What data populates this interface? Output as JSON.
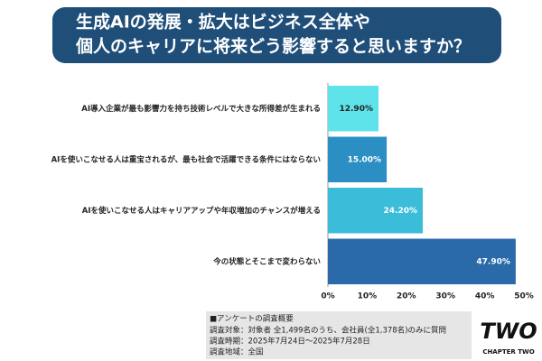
{
  "chart_data": {
    "type": "hbar",
    "title_lines": [
      "生成AIの発展・拡大はビジネス全体や",
      "個人のキャリアに将来どう影響すると思いますか？"
    ],
    "categories": [
      "AI導入企業が最も影響力を持ち技術レベルで大きな所得差が生まれる",
      "AIを使いこなせる人は重宝されるが、最も社会で活躍できる条件にはならない",
      "AIを使いこなせる人はキャリアアップや年収増加のチャンスが増える",
      "今の状態とそこまで変わらない"
    ],
    "values": [
      12.9,
      15,
      24.2,
      47.9
    ],
    "value_labels": [
      "12.90%",
      "15.00%",
      "24.20%",
      "47.90%"
    ],
    "colors": [
      "#5fe3ea",
      "#2b8fc3",
      "#3bbcd9",
      "#2a6aa8"
    ],
    "xlim": [
      0,
      50
    ],
    "xticks": [
      {
        "value": 0,
        "label": "0%"
      },
      {
        "value": 10,
        "label": "10%"
      },
      {
        "value": 20,
        "label": "20%"
      },
      {
        "value": 30,
        "label": "30%"
      },
      {
        "value": 40,
        "label": "40%"
      },
      {
        "value": 50,
        "label": "50%"
      }
    ]
  },
  "survey": {
    "lines": [
      "■アンケートの調査概要",
      "調査対象：対象者 全1,499名のうち、会社員(全1,378名)のみに質問",
      "調査時期：2025年7月24日～2025年7月28日",
      "調査地域：全国"
    ]
  },
  "logo": {
    "text": "TWO",
    "subtext": "CHAPTER TWO"
  }
}
